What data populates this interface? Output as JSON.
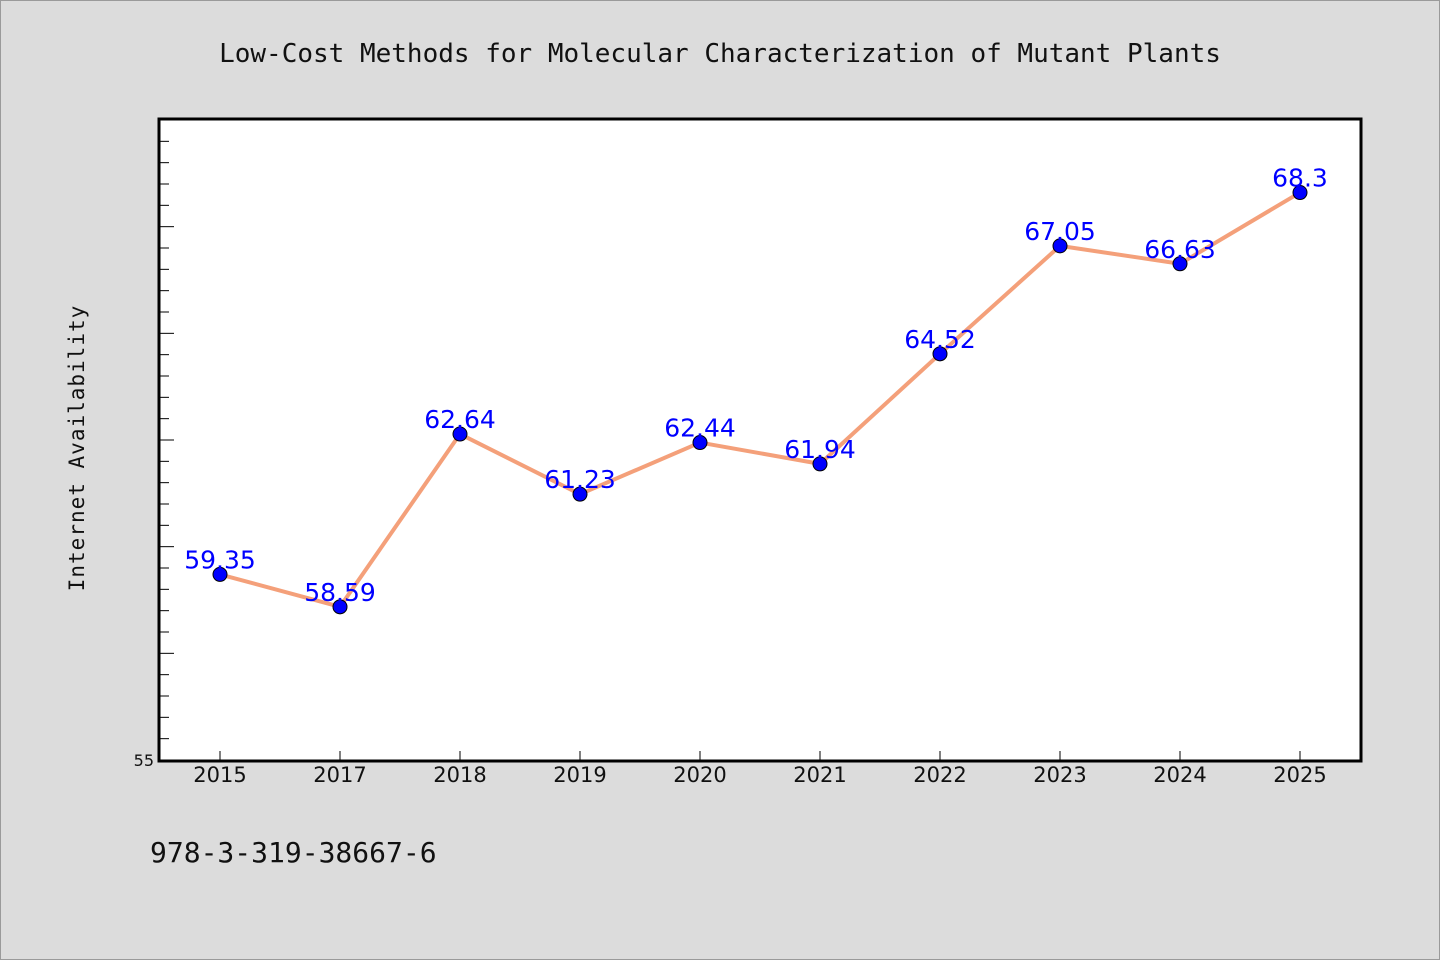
{
  "chart_data": {
    "type": "line",
    "title": "Low-Cost Methods for Molecular Characterization of Mutant Plants",
    "xlabel": "",
    "ylabel": "Internet Availability",
    "categories": [
      "2015",
      "2017",
      "2018",
      "2019",
      "2020",
      "2021",
      "2022",
      "2023",
      "2024",
      "2025"
    ],
    "series": [
      {
        "values": [
          59.35,
          58.59,
          62.64,
          61.23,
          62.44,
          61.94,
          64.52,
          67.05,
          66.63,
          68.3
        ],
        "data_labels": [
          "59.35",
          "58.59",
          "62.64",
          "61.23",
          "62.44",
          "61.94",
          "64.52",
          "67.05",
          "66.63",
          "68.3"
        ]
      }
    ],
    "ylim": [
      55,
      70
    ],
    "ytick_labels": [
      "55"
    ],
    "grid": false,
    "line_color": "#f4a07a",
    "marker_color": "#0000ff",
    "label_color": "#0000ff"
  },
  "footer": {
    "isbn": "978-3-319-38667-6"
  }
}
